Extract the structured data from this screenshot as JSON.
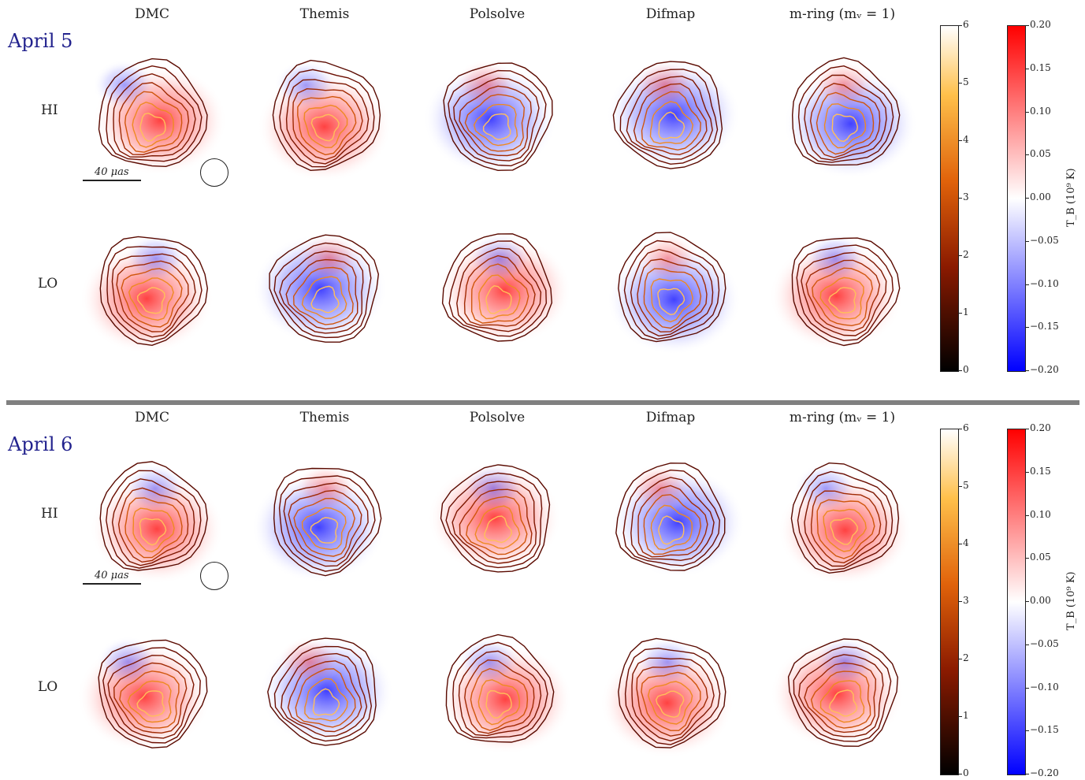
{
  "columns": [
    "DMC",
    "Themis",
    "Polsolve",
    "Difmap",
    "m-ring (mᵥ = 1)"
  ],
  "rows": [
    "HI",
    "LO"
  ],
  "days": [
    "April 5",
    "April 6"
  ],
  "scalebar_label": "40 μas",
  "colorbar_intensity": {
    "ticks": [
      "0",
      "1",
      "2",
      "3",
      "4",
      "5",
      "6"
    ],
    "colormap": "afmhot"
  },
  "colorbar_circpol": {
    "ticks": [
      "0.20",
      "0.15",
      "0.10",
      "0.05",
      "0.00",
      "−0.05",
      "−0.10",
      "−0.15",
      "−0.20"
    ],
    "label": "T_B (10⁹ K)",
    "colormap": "bwr"
  },
  "colors": {
    "positive": "#ff2a2a",
    "negative": "#2a2aff",
    "contour_outer": "#6b0d00",
    "contour_inner": "#ff9a2a",
    "day_label": "#23238e"
  },
  "panels": {
    "d0": {
      "HI": [
        [
          "r",
          "DMC"
        ],
        [
          "r",
          "Themis"
        ],
        [
          "b",
          "Polsolve"
        ],
        [
          "b",
          "Difmap"
        ],
        [
          "b",
          "m-ring"
        ]
      ],
      "LO": [
        [
          "r",
          "DMC"
        ],
        [
          "b",
          "Themis"
        ],
        [
          "r",
          "Polsolve"
        ],
        [
          "b",
          "Difmap"
        ],
        [
          "r",
          "m-ring"
        ]
      ]
    },
    "d1": {
      "HI": [
        [
          "r",
          "DMC"
        ],
        [
          "b",
          "Themis"
        ],
        [
          "r",
          "Polsolve"
        ],
        [
          "b",
          "Difmap"
        ],
        [
          "r",
          "m-ring"
        ]
      ],
      "LO": [
        [
          "r",
          "DMC"
        ],
        [
          "b",
          "Themis"
        ],
        [
          "r",
          "Polsolve"
        ],
        [
          "r",
          "Difmap"
        ],
        [
          "r",
          "m-ring"
        ]
      ]
    }
  }
}
